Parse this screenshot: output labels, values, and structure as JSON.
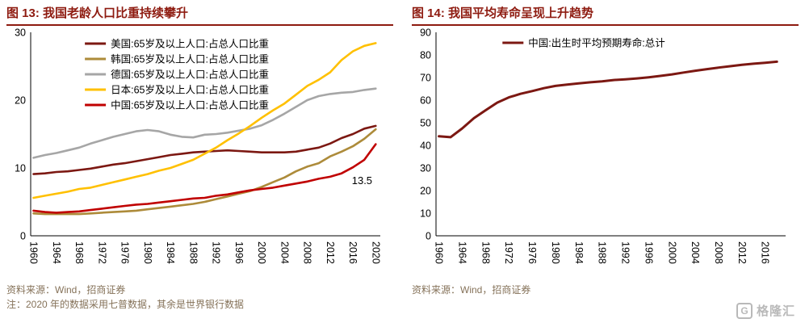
{
  "colors": {
    "title": "#8e1b10",
    "title_rule": "#8e1b10",
    "source_text": "#857259",
    "axis": "#000000",
    "watermark": "#b9b9b9"
  },
  "figure13": {
    "source": "资料来源：Wind，招商证券",
    "note": "注：2020 年的数据采用七普数据，其余是世界银行数据"
  },
  "figure14": {
    "source": "资料来源：Wind，招商证券"
  },
  "watermark": {
    "logo_text": "G",
    "name": "格隆汇"
  },
  "chart_data": [
    {
      "type": "line",
      "title": "图 13: 我国老龄人口比重持续攀升",
      "xlabel": "",
      "ylabel": "",
      "xlim": [
        1959.5,
        2020.8
      ],
      "ylim": [
        0,
        30
      ],
      "yticks": [
        0,
        10,
        20,
        30
      ],
      "xticks": [
        1960,
        1964,
        1968,
        1972,
        1976,
        1980,
        1984,
        1988,
        1992,
        1996,
        2000,
        2004,
        2008,
        2012,
        2016,
        2020
      ],
      "grid": false,
      "legend_position": "top-left-inset",
      "x": [
        1960,
        1962,
        1964,
        1966,
        1968,
        1970,
        1972,
        1974,
        1976,
        1978,
        1980,
        1982,
        1984,
        1986,
        1988,
        1990,
        1992,
        1994,
        1996,
        1998,
        2000,
        2002,
        2004,
        2006,
        2008,
        2010,
        2012,
        2014,
        2016,
        2018,
        2020
      ],
      "series": [
        {
          "name": "美国:65岁及以上人口:占总人口比重",
          "color": "#7c1812",
          "values": [
            9.1,
            9.2,
            9.4,
            9.5,
            9.7,
            9.9,
            10.2,
            10.5,
            10.7,
            11.0,
            11.3,
            11.6,
            11.9,
            12.1,
            12.3,
            12.4,
            12.5,
            12.6,
            12.5,
            12.4,
            12.3,
            12.3,
            12.3,
            12.4,
            12.7,
            13.0,
            13.6,
            14.4,
            15.0,
            15.8,
            16.2
          ]
        },
        {
          "name": "韩国:65岁及以上人口:占总人口比重",
          "color": "#ad8b3a",
          "values": [
            3.3,
            3.2,
            3.2,
            3.2,
            3.2,
            3.3,
            3.4,
            3.5,
            3.6,
            3.7,
            3.9,
            4.1,
            4.3,
            4.5,
            4.7,
            5.0,
            5.4,
            5.8,
            6.2,
            6.6,
            7.2,
            7.9,
            8.6,
            9.5,
            10.2,
            10.7,
            11.7,
            12.4,
            13.2,
            14.3,
            15.7
          ]
        },
        {
          "name": "德国:65岁及以上人口:占总人口比重",
          "color": "#a6a6a6",
          "values": [
            11.5,
            11.9,
            12.2,
            12.6,
            13.0,
            13.6,
            14.1,
            14.6,
            15.0,
            15.4,
            15.6,
            15.4,
            14.9,
            14.6,
            14.5,
            14.9,
            15.0,
            15.2,
            15.5,
            15.8,
            16.3,
            17.1,
            18.0,
            19.0,
            20.0,
            20.6,
            20.9,
            21.1,
            21.2,
            21.5,
            21.7
          ]
        },
        {
          "name": "日本:65岁及以上人口:占总人口比重",
          "color": "#ffc000",
          "values": [
            5.6,
            5.9,
            6.2,
            6.5,
            6.9,
            7.1,
            7.5,
            7.9,
            8.3,
            8.7,
            9.1,
            9.6,
            10.0,
            10.6,
            11.2,
            12.1,
            13.0,
            14.1,
            15.1,
            16.2,
            17.4,
            18.5,
            19.5,
            20.8,
            22.1,
            23.0,
            24.1,
            25.9,
            27.2,
            28.0,
            28.4
          ]
        },
        {
          "name": "中国:65岁及以上人口:占总人口比重",
          "color": "#c00000",
          "values": [
            3.7,
            3.5,
            3.4,
            3.5,
            3.6,
            3.8,
            4.0,
            4.2,
            4.4,
            4.6,
            4.7,
            4.9,
            5.1,
            5.3,
            5.5,
            5.6,
            5.9,
            6.1,
            6.4,
            6.7,
            6.9,
            7.1,
            7.4,
            7.7,
            8.0,
            8.4,
            8.7,
            9.2,
            10.1,
            11.2,
            13.5
          ]
        }
      ],
      "annotation": {
        "x": 2017.6,
        "y": 7.6,
        "text": "13.5"
      }
    },
    {
      "type": "line",
      "title": "图 14: 我国平均寿命呈现上升趋势",
      "xlabel": "",
      "ylabel": "",
      "xlim": [
        1959.5,
        2019.5
      ],
      "ylim": [
        0,
        90
      ],
      "yticks": [
        0,
        10,
        20,
        30,
        40,
        50,
        60,
        70,
        80,
        90
      ],
      "xticks": [
        1960,
        1964,
        1968,
        1972,
        1976,
        1980,
        1984,
        1988,
        1992,
        1996,
        2000,
        2004,
        2008,
        2012,
        2016
      ],
      "grid": false,
      "legend_position": "top-center-inset",
      "x": [
        1960,
        1962,
        1964,
        1966,
        1968,
        1970,
        1972,
        1974,
        1976,
        1978,
        1980,
        1982,
        1984,
        1986,
        1988,
        1990,
        1992,
        1994,
        1996,
        1998,
        2000,
        2002,
        2004,
        2006,
        2008,
        2010,
        2012,
        2014,
        2016,
        2018
      ],
      "series": [
        {
          "name": "中国:出生时平均预期寿命:总计",
          "color": "#7c1812",
          "values": [
            44.0,
            43.6,
            47.5,
            52.0,
            55.5,
            58.9,
            61.2,
            62.8,
            64.0,
            65.3,
            66.3,
            66.9,
            67.4,
            67.9,
            68.3,
            68.9,
            69.2,
            69.6,
            70.1,
            70.7,
            71.4,
            72.2,
            73.0,
            73.7,
            74.4,
            75.0,
            75.6,
            76.1,
            76.5,
            77.0
          ]
        }
      ]
    }
  ]
}
